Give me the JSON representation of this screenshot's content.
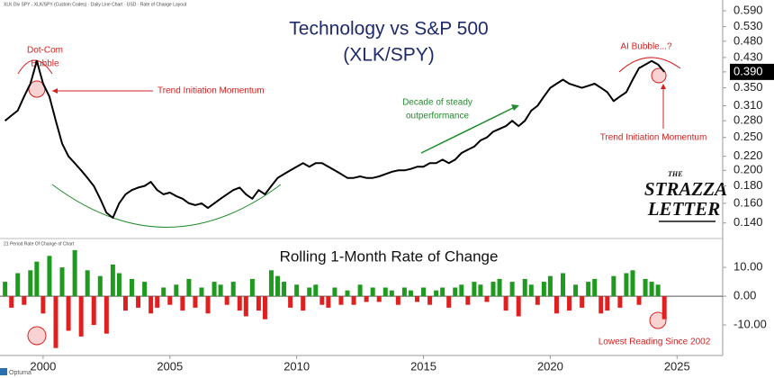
{
  "header": "XLK Div SPY - XLK/SPY (Custom Codes) · Daily Line Chart · USD · Rate of Change Layout",
  "footer": "Optuma",
  "logo": {
    "top": "THE",
    "line1": "STRAZZA",
    "line2": "LETTER"
  },
  "annotations": {
    "dotcom": [
      "Dot-Com",
      "Bubble"
    ],
    "trend_left": "Trend Initiation Momentum",
    "decade": [
      "Decade of steady",
      "outperformance"
    ],
    "ai": "AI Bubble...?",
    "trend_right": "Trend Initiation Momentum",
    "lowest": "Lowest Reading Since 2002"
  },
  "chart_data": [
    {
      "type": "line",
      "title": "Technology vs S&P 500",
      "subtitle": "(XLK/SPY)",
      "log_scale": true,
      "x": [
        1998.5,
        1998.75,
        1999,
        1999.25,
        1999.5,
        1999.75,
        2000,
        2000.25,
        2000.5,
        2000.75,
        2001,
        2001.25,
        2001.5,
        2001.75,
        2002,
        2002.25,
        2002.5,
        2002.75,
        2003,
        2003.25,
        2003.5,
        2003.75,
        2004,
        2004.25,
        2004.5,
        2004.75,
        2005,
        2005.25,
        2005.5,
        2005.75,
        2006,
        2006.25,
        2006.5,
        2006.75,
        2007,
        2007.25,
        2007.5,
        2007.75,
        2008,
        2008.25,
        2008.5,
        2008.75,
        2009,
        2009.25,
        2009.5,
        2009.75,
        2010,
        2010.25,
        2010.5,
        2010.75,
        2011,
        2011.25,
        2011.5,
        2011.75,
        2012,
        2012.25,
        2012.5,
        2012.75,
        2013,
        2013.25,
        2013.5,
        2013.75,
        2014,
        2014.25,
        2014.5,
        2014.75,
        2015,
        2015.25,
        2015.5,
        2015.75,
        2016,
        2016.25,
        2016.5,
        2016.75,
        2017,
        2017.25,
        2017.5,
        2017.75,
        2018,
        2018.25,
        2018.5,
        2018.75,
        2019,
        2019.25,
        2019.5,
        2019.75,
        2020,
        2020.25,
        2020.5,
        2020.75,
        2021,
        2021.25,
        2021.5,
        2021.75,
        2022,
        2022.25,
        2022.5,
        2022.75,
        2023,
        2023.25,
        2023.5,
        2023.75,
        2024,
        2024.25,
        2024.5
      ],
      "series": [
        {
          "name": "XLK/SPY",
          "color": "#000000",
          "values": [
            0.28,
            0.29,
            0.3,
            0.33,
            0.36,
            0.42,
            0.36,
            0.33,
            0.28,
            0.24,
            0.22,
            0.21,
            0.2,
            0.19,
            0.18,
            0.165,
            0.15,
            0.145,
            0.16,
            0.17,
            0.175,
            0.178,
            0.18,
            0.185,
            0.175,
            0.17,
            0.172,
            0.168,
            0.165,
            0.16,
            0.158,
            0.16,
            0.155,
            0.16,
            0.165,
            0.17,
            0.175,
            0.178,
            0.17,
            0.165,
            0.175,
            0.17,
            0.18,
            0.19,
            0.195,
            0.2,
            0.205,
            0.21,
            0.205,
            0.21,
            0.21,
            0.205,
            0.2,
            0.195,
            0.19,
            0.19,
            0.192,
            0.19,
            0.19,
            0.192,
            0.195,
            0.198,
            0.2,
            0.2,
            0.202,
            0.205,
            0.205,
            0.21,
            0.21,
            0.215,
            0.21,
            0.215,
            0.225,
            0.23,
            0.235,
            0.245,
            0.25,
            0.26,
            0.265,
            0.27,
            0.28,
            0.27,
            0.28,
            0.3,
            0.31,
            0.33,
            0.35,
            0.36,
            0.37,
            0.36,
            0.355,
            0.35,
            0.355,
            0.36,
            0.35,
            0.34,
            0.32,
            0.33,
            0.34,
            0.37,
            0.4,
            0.41,
            0.42,
            0.41,
            0.39
          ]
        }
      ],
      "xlim": [
        1998.3,
        2026.8
      ],
      "ylim": [
        0.126,
        0.635
      ],
      "yticks": [
        {
          "value": 0.14,
          "label": "0.140"
        },
        {
          "value": 0.16,
          "label": "0.160"
        },
        {
          "value": 0.18,
          "label": "0.180"
        },
        {
          "value": 0.2,
          "label": "0.200"
        },
        {
          "value": 0.22,
          "label": "0.220"
        },
        {
          "value": 0.25,
          "label": "0.250"
        },
        {
          "value": 0.28,
          "label": "0.280"
        },
        {
          "value": 0.31,
          "label": "0.310"
        },
        {
          "value": 0.35,
          "label": "0.350"
        },
        {
          "value": 0.39,
          "label": "0.390"
        },
        {
          "value": 0.43,
          "label": "0.430"
        },
        {
          "value": 0.48,
          "label": "0.480"
        },
        {
          "value": 0.53,
          "label": "0.530"
        },
        {
          "value": 0.59,
          "label": "0.590"
        }
      ]
    },
    {
      "type": "bar",
      "title": "Rolling 1-Month Rate of Change",
      "panel_label": "21 Period Rate Of Change of Chart",
      "positive_color": "#1e9a1e",
      "negative_color": "#e02020",
      "zero_line": true,
      "x": [
        1998.5,
        1998.75,
        1999,
        1999.25,
        1999.5,
        1999.75,
        2000,
        2000.25,
        2000.5,
        2000.75,
        2001,
        2001.25,
        2001.5,
        2001.75,
        2002,
        2002.25,
        2002.5,
        2002.75,
        2003,
        2003.25,
        2003.5,
        2003.75,
        2004,
        2004.25,
        2004.5,
        2004.75,
        2005,
        2005.25,
        2005.5,
        2005.75,
        2006,
        2006.25,
        2006.5,
        2006.75,
        2007,
        2007.25,
        2007.5,
        2007.75,
        2008,
        2008.25,
        2008.5,
        2008.75,
        2009,
        2009.25,
        2009.5,
        2009.75,
        2010,
        2010.25,
        2010.5,
        2010.75,
        2011,
        2011.25,
        2011.5,
        2011.75,
        2012,
        2012.25,
        2012.5,
        2012.75,
        2013,
        2013.25,
        2013.5,
        2013.75,
        2014,
        2014.25,
        2014.5,
        2014.75,
        2015,
        2015.25,
        2015.5,
        2015.75,
        2016,
        2016.25,
        2016.5,
        2016.75,
        2017,
        2017.25,
        2017.5,
        2017.75,
        2018,
        2018.25,
        2018.5,
        2018.75,
        2019,
        2019.25,
        2019.5,
        2019.75,
        2020,
        2020.25,
        2020.5,
        2020.75,
        2021,
        2021.25,
        2021.5,
        2021.75,
        2022,
        2022.25,
        2022.5,
        2022.75,
        2023,
        2023.25,
        2023.5,
        2023.75,
        2024,
        2024.25,
        2024.5
      ],
      "values": [
        5,
        -4,
        8,
        -3,
        9,
        12,
        -6,
        14,
        -18,
        10,
        -12,
        16,
        -14,
        9,
        -10,
        7,
        -13,
        11,
        8,
        -5,
        6,
        -4,
        5,
        -6,
        -4,
        3,
        -3,
        4,
        -5,
        6,
        -4,
        3,
        -6,
        5,
        4,
        -3,
        5,
        -5,
        -7,
        6,
        -5,
        -8,
        9,
        7,
        5,
        -4,
        4,
        -5,
        3,
        4,
        -3,
        -4,
        3,
        -3,
        2,
        -3,
        4,
        -2,
        3,
        -2,
        3,
        2,
        -3,
        3,
        2,
        -2,
        3,
        -3,
        2,
        3,
        -4,
        3,
        4,
        -3,
        5,
        4,
        -2,
        5,
        6,
        -5,
        5,
        -7,
        6,
        4,
        -3,
        5,
        7,
        -6,
        8,
        -5,
        4,
        -4,
        5,
        6,
        -6,
        -5,
        7,
        -4,
        8,
        9,
        -3,
        6,
        5,
        4,
        -8
      ],
      "xlim": [
        1998.3,
        2026.8
      ],
      "xticks": [
        2000,
        2005,
        2010,
        2015,
        2020,
        2025
      ],
      "ylim": [
        -20.6,
        19.1
      ],
      "yticks": [
        {
          "value": 10,
          "label": "10.00"
        },
        {
          "value": 0,
          "label": "0.00"
        },
        {
          "value": -10,
          "label": "-10.00"
        }
      ]
    }
  ]
}
